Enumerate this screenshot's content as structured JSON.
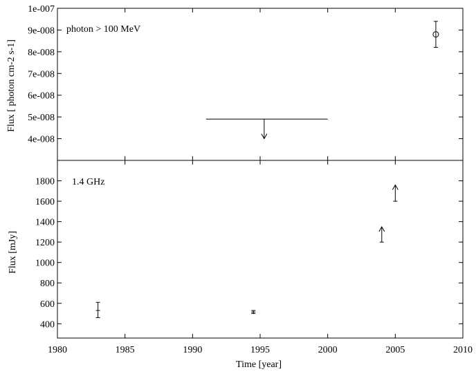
{
  "chart_data": [
    {
      "type": "scatter",
      "annotation": "photon > 100 MeV",
      "ylabel": "Flux [ photon cm-2 s-1]",
      "xlim": [
        1980,
        2010
      ],
      "ylim": [
        3e-08,
        1e-07
      ],
      "yticks": [
        4e-08,
        5e-08,
        6e-08,
        7e-08,
        8e-08,
        9e-08,
        1e-07
      ],
      "ytick_labels": [
        "4e-008",
        "5e-008",
        "6e-008",
        "7e-008",
        "8e-008",
        "9e-008",
        "1e-007"
      ],
      "points": [
        {
          "x": 2008.0,
          "y": 8.8e-08,
          "yerr_low": 8.2e-08,
          "yerr_high": 9.4e-08,
          "marker": "circle"
        }
      ],
      "upper_limits": [
        {
          "x_start": 1991.0,
          "x_end": 2000.0,
          "x": 1995.3,
          "y": 4.9e-08,
          "arrow_to": 4e-08
        }
      ]
    },
    {
      "type": "scatter",
      "annotation": "1.4 GHz",
      "xlabel": "Time [year]",
      "ylabel": "Flux [mJy]",
      "xlim": [
        1980,
        2010
      ],
      "ylim": [
        260,
        2000
      ],
      "xticks": [
        1980,
        1985,
        1990,
        1995,
        2000,
        2005,
        2010
      ],
      "xtick_labels": [
        "1980",
        "1985",
        "1990",
        "1995",
        "2000",
        "2005",
        "2010"
      ],
      "yticks": [
        400,
        600,
        800,
        1000,
        1200,
        1400,
        1600,
        1800
      ],
      "ytick_labels": [
        "400",
        "600",
        "800",
        "1000",
        "1200",
        "1400",
        "1600",
        "1800"
      ],
      "points": [
        {
          "x": 1983.0,
          "y": 530,
          "yerr_low": 460,
          "yerr_high": 610
        },
        {
          "x": 1994.5,
          "y": 515,
          "yerr_low": 500,
          "yerr_high": 530
        }
      ],
      "lower_limits": [
        {
          "x": 2004.0,
          "y": 1200,
          "arrow_to": 1350
        },
        {
          "x": 2005.0,
          "y": 1600,
          "arrow_to": 1760
        }
      ]
    }
  ]
}
